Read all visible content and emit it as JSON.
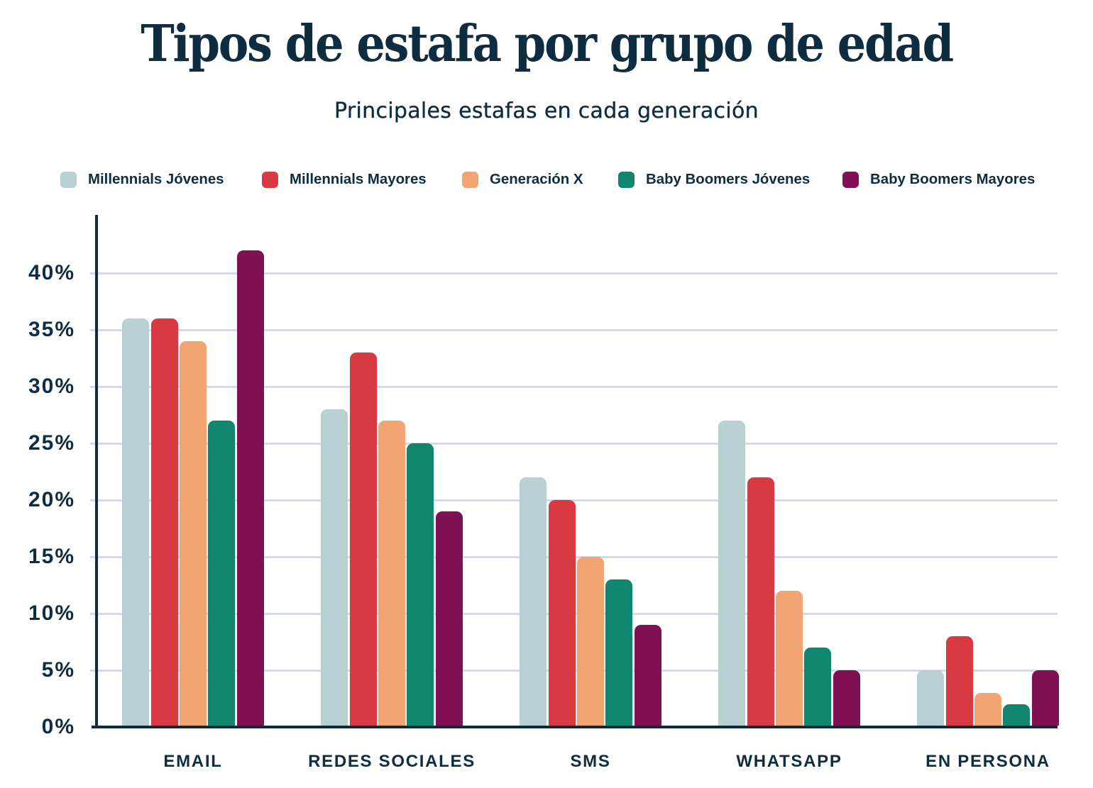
{
  "header": {
    "title": "Tipos de estafa por grupo de edad",
    "subtitle": "Principales estafas en cada generación"
  },
  "colors": {
    "background": "#ffffff",
    "text": "#0e2d40",
    "gridline": "#d6dae3",
    "axis": "#0e2d40"
  },
  "chart_data": {
    "type": "bar",
    "title": "Tipos de estafa por grupo de edad",
    "subtitle": "Principales estafas en cada generación",
    "categories": [
      "EMAIL",
      "REDES SOCIALES",
      "SMS",
      "WHATSAPP",
      "EN PERSONA"
    ],
    "series": [
      {
        "name": "Millennials Jóvenes",
        "color": "#b7d0d1",
        "values": [
          36,
          28,
          22,
          27,
          5
        ]
      },
      {
        "name": "Millennials Mayores",
        "color": "#d93940",
        "values": [
          36,
          33,
          20,
          22,
          8
        ]
      },
      {
        "name": "Generación X",
        "color": "#f2a473",
        "values": [
          34,
          27,
          15,
          12,
          3
        ]
      },
      {
        "name": "Baby Boomers Jóvenes",
        "color": "#0f866d",
        "values": [
          27,
          25,
          13,
          7,
          2
        ]
      },
      {
        "name": "Baby Boomers Mayores",
        "color": "#7e1053",
        "values": [
          42,
          19,
          9,
          5,
          5
        ]
      }
    ],
    "y_ticks": [
      "0%",
      "5%",
      "10%",
      "15%",
      "20%",
      "25%",
      "30%",
      "35%",
      "40%"
    ],
    "ylim": [
      0,
      45
    ],
    "xlabel": "",
    "ylabel": "",
    "grid": true,
    "legend_position": "top"
  }
}
